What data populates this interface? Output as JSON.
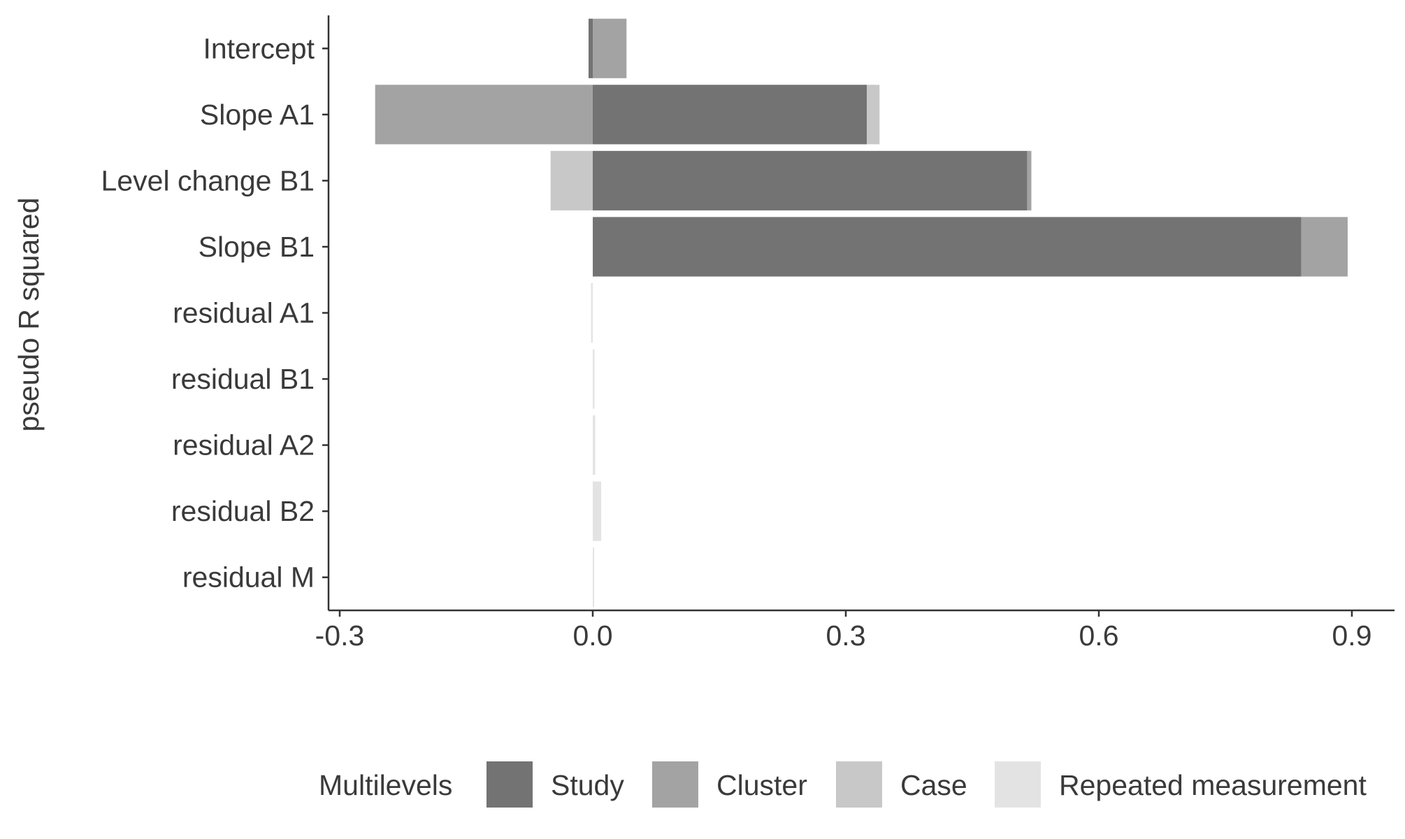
{
  "chart_data": {
    "type": "bar",
    "orientation": "horizontal",
    "stacked": true,
    "title": "",
    "xlabel": "",
    "ylabel": "pseudo R squared",
    "categories": [
      "Intercept",
      "Slope A1",
      "Level change B1",
      "Slope B1",
      "residual A1",
      "residual B1",
      "residual A2",
      "residual B2",
      "residual M"
    ],
    "series": [
      {
        "name": "Study",
        "color": "#737373",
        "values": [
          -0.005,
          0.325,
          0.515,
          0.84,
          0,
          0,
          0,
          0,
          0
        ]
      },
      {
        "name": "Cluster",
        "color": "#a3a3a3",
        "values": [
          0.04,
          -0.258,
          0.005,
          0.055,
          0,
          0,
          0,
          0,
          0
        ]
      },
      {
        "name": "Case",
        "color": "#c8c8c8",
        "values": [
          0,
          0.015,
          -0.05,
          0,
          0,
          0,
          0,
          0,
          0
        ]
      },
      {
        "name": "Repeated measurement",
        "color": "#e3e3e3",
        "values": [
          0,
          0,
          0,
          0,
          -0.002,
          0.002,
          0.003,
          0.01,
          0.001
        ]
      }
    ],
    "xlim": [
      -0.31,
      0.95
    ],
    "xticks": [
      "-0.3",
      "0.0",
      "0.3",
      "0.6",
      "0.9"
    ],
    "xtick_values": [
      -0.3,
      0,
      0.3,
      0.6,
      0.9
    ],
    "grid": false,
    "legend": {
      "title": "Multilevels",
      "placement": "bottom"
    }
  }
}
